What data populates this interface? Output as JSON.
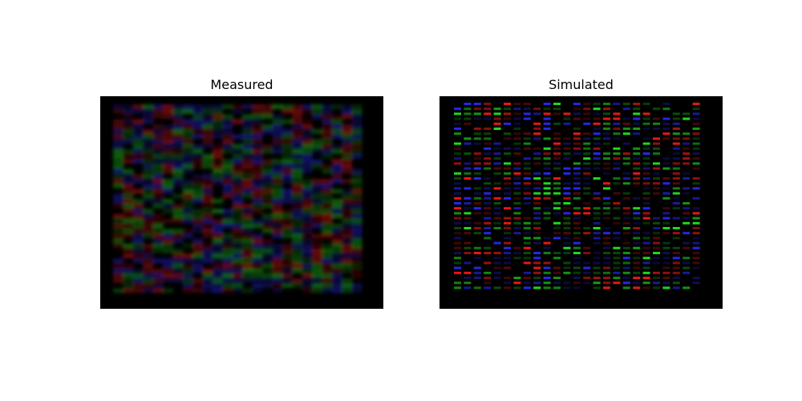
{
  "panels": {
    "measured": {
      "title": "Measured"
    },
    "simulated": {
      "title": "Simulated"
    }
  },
  "colors": {
    "background": "#000000",
    "red": "#ff1a1a",
    "green": "#22ee22",
    "blue": "#2a2aff"
  }
}
